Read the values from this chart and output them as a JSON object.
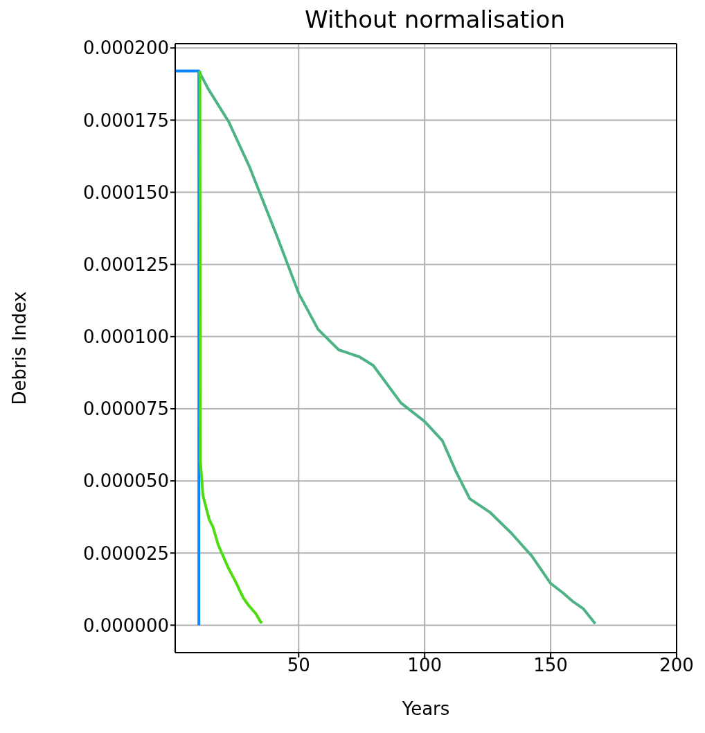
{
  "chart_data": {
    "type": "line",
    "title": "Without normalisation",
    "xlabel": "Years",
    "ylabel": "Debris Index",
    "xlim": [
      1,
      200
    ],
    "xticks": [
      50,
      100,
      150,
      200
    ],
    "ylim": [
      -9.5e-06,
      0.0002015
    ],
    "yticks": [
      {
        "value": 0,
        "label": "0.000000"
      },
      {
        "value": 2.5e-05,
        "label": "0.000025"
      },
      {
        "value": 5e-05,
        "label": "0.000050"
      },
      {
        "value": 7.5e-05,
        "label": "0.000075"
      },
      {
        "value": 0.0001,
        "label": "0.000100"
      },
      {
        "value": 0.000125,
        "label": "0.000125"
      },
      {
        "value": 0.00015,
        "label": "0.000150"
      },
      {
        "value": 0.000175,
        "label": "0.000175"
      },
      {
        "value": 0.0002,
        "label": "0.000200"
      }
    ],
    "grid": true,
    "marker": "none",
    "line_style": "solid",
    "series": [
      {
        "color": "#0a84ff",
        "x": [
          1,
          10.4,
          10.4
        ],
        "values": [
          0.000192,
          0.000192,
          0
        ]
      },
      {
        "color": "#4db386",
        "x": [
          10.4,
          14,
          22.2,
          30.4,
          41.3,
          50,
          57.7,
          65.9,
          74.1,
          79.6,
          90.6,
          100,
          107,
          112.4,
          117.9,
          126.1,
          134.4,
          142.5,
          150,
          154.9,
          159,
          163,
          165.8,
          167.7
        ],
        "values": [
          0.000192,
          0.000186,
          0.0001745,
          0.000159,
          0.000135,
          0.000115,
          0.0001025,
          9.54e-05,
          9.3e-05,
          9e-05,
          7.7e-05,
          7.06e-05,
          6.4e-05,
          5.33e-05,
          4.38e-05,
          3.9e-05,
          3.19e-05,
          2.4e-05,
          1.45e-05,
          1.12e-05,
          8.1e-06,
          5.7e-06,
          2.6e-06,
          5e-07
        ]
      },
      {
        "color": "#4cdc10",
        "x": [
          10.8,
          11,
          12,
          14.5,
          16,
          18,
          20,
          22,
          25,
          28,
          30,
          33,
          35,
          35.3
        ],
        "values": [
          0.000192,
          5.68e-05,
          4.5e-05,
          3.66e-05,
          3.4e-05,
          2.8e-05,
          2.4e-05,
          2e-05,
          1.5e-05,
          9.5e-06,
          7e-06,
          4e-06,
          1e-06,
          1.5e-06
        ]
      }
    ]
  }
}
